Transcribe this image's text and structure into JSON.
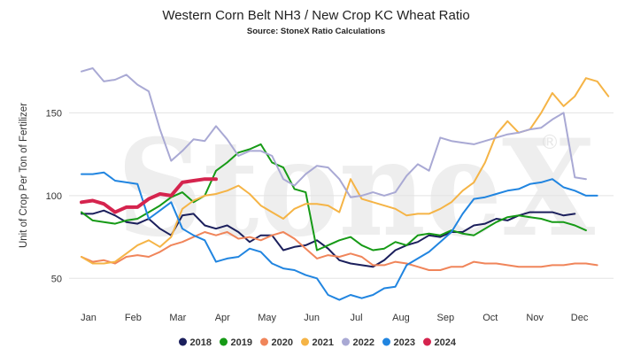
{
  "chart_data": {
    "type": "line",
    "title": "Western Corn Belt NH3 / New Crop KC Wheat Ratio",
    "subtitle": "Source: StoneX Ratio Calculations",
    "ylabel": "Unit of Crop Per Ton of Fertilizer",
    "xlabel": "",
    "watermark": "StoneX",
    "watermark_mark": "®",
    "ylim": [
      40,
      185
    ],
    "yticks": [
      "50",
      "100",
      "150"
    ],
    "ytick_values": [
      50,
      100,
      150
    ],
    "xticks": [
      "Jan",
      "Feb",
      "Mar",
      "Apr",
      "May",
      "Jun",
      "Jul",
      "Aug",
      "Sep",
      "Oct",
      "Nov",
      "Dec"
    ],
    "grid": "horizontal",
    "legend_position": "bottom",
    "series": [
      {
        "name": "2018",
        "color": "#1b1f5c",
        "values": [
          89,
          89,
          91,
          88,
          84,
          83,
          86,
          80,
          76,
          88,
          89,
          82,
          80,
          82,
          78,
          72,
          76,
          76,
          67,
          69,
          70,
          73,
          68,
          61,
          59,
          58,
          57,
          61,
          67,
          70,
          72,
          76,
          75,
          78,
          78,
          82,
          83,
          86,
          85,
          88,
          90,
          90,
          90,
          88,
          89
        ]
      },
      {
        "name": "2019",
        "color": "#169a16",
        "values": [
          90,
          85,
          84,
          83,
          85,
          86,
          90,
          94,
          99,
          102,
          96,
          100,
          115,
          120,
          126,
          128,
          131,
          120,
          117,
          104,
          102,
          67,
          70,
          73,
          75,
          70,
          67,
          68,
          72,
          70,
          76,
          77,
          76,
          79,
          77,
          76,
          80,
          84,
          87,
          88,
          87,
          86,
          84,
          84,
          82,
          79
        ]
      },
      {
        "name": "2020",
        "color": "#f0855a",
        "values": [
          63,
          60,
          61,
          59,
          63,
          64,
          63,
          66,
          70,
          72,
          75,
          78,
          76,
          78,
          74,
          75,
          73,
          76,
          78,
          74,
          68,
          62,
          64,
          63,
          65,
          63,
          58,
          58,
          60,
          59,
          57,
          55,
          55,
          57,
          57,
          60,
          59,
          59,
          58,
          57,
          57,
          57,
          58,
          58,
          59,
          59,
          58
        ]
      },
      {
        "name": "2021",
        "color": "#f5b446",
        "values": [
          63,
          59,
          59,
          60,
          65,
          70,
          73,
          69,
          75,
          92,
          97,
          100,
          101,
          103,
          106,
          101,
          94,
          90,
          86,
          92,
          95,
          95,
          94,
          90,
          110,
          98,
          96,
          94,
          92,
          88,
          89,
          89,
          92,
          96,
          103,
          108,
          120,
          137,
          145,
          138,
          140,
          150,
          162,
          154,
          160,
          171,
          169,
          160
        ]
      },
      {
        "name": "2022",
        "color": "#a9a9d4",
        "values": [
          175,
          177,
          169,
          170,
          173,
          167,
          163,
          140,
          121,
          127,
          134,
          133,
          142,
          134,
          124,
          127,
          127,
          124,
          110,
          106,
          113,
          118,
          117,
          110,
          99,
          100,
          102,
          100,
          102,
          112,
          119,
          115,
          135,
          133,
          132,
          131,
          133,
          135,
          137,
          138,
          140,
          141,
          146,
          150,
          111,
          110
        ]
      },
      {
        "name": "2023",
        "color": "#2185e0",
        "values": [
          113,
          113,
          114,
          109,
          108,
          107,
          86,
          91,
          96,
          80,
          76,
          73,
          60,
          62,
          63,
          68,
          66,
          59,
          56,
          55,
          52,
          50,
          40,
          37,
          40,
          38,
          40,
          44,
          45,
          58,
          62,
          66,
          72,
          78,
          89,
          98,
          99,
          101,
          103,
          104,
          107,
          108,
          110,
          105,
          103,
          100,
          100
        ]
      },
      {
        "name": "2024",
        "color": "#d5244e",
        "values": [
          96,
          97,
          95,
          90,
          93,
          93,
          98,
          101,
          100,
          108,
          109,
          110,
          110
        ]
      }
    ]
  }
}
